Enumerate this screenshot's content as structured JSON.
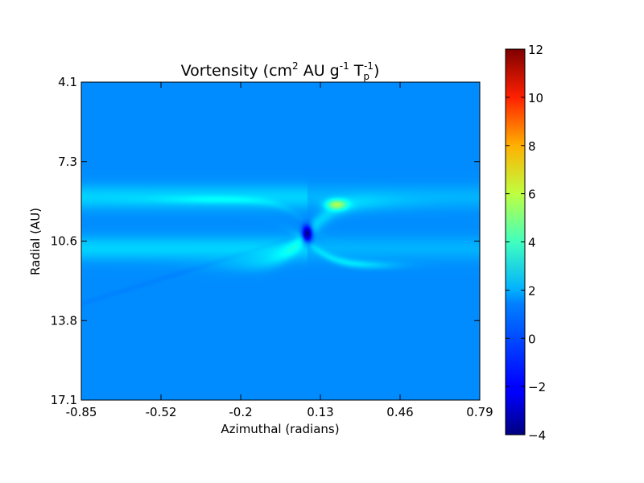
{
  "chart_data": {
    "type": "heatmap",
    "title": {
      "prefix": "Vortensity (cm",
      "sup1": "2",
      "mid1": " AU g",
      "sup2": "-1",
      "mid2": " T",
      "sub": "p",
      "sup3": "-1",
      "suffix": ")"
    },
    "xlabel": "Azimuthal (radians)",
    "ylabel": "Radial (AU)",
    "xlim": [
      -0.85,
      0.79
    ],
    "ylim": [
      4.1,
      17.1
    ],
    "x_ticks": [
      "-0.85",
      "-0.52",
      "-0.2",
      "0.13",
      "0.46",
      "0.79"
    ],
    "y_ticks": [
      "4.1",
      "7.3",
      "10.6",
      "13.8",
      "17.1"
    ],
    "colorbar": {
      "colormap": "jet",
      "min": -4,
      "max": 12,
      "ticks": [
        "12",
        "10",
        "8",
        "6",
        "4",
        "2",
        "0",
        "−2",
        "−4"
      ],
      "tick_values": [
        12,
        10,
        8,
        6,
        4,
        2,
        0,
        -2,
        -4
      ]
    },
    "field": {
      "background_value": 0.2,
      "ring_value": 1.3,
      "inner_ring_radius": 8.8,
      "outer_ring_radius": 10.9,
      "ring_width": 0.35,
      "planet_azimuth": 0.08,
      "planet_radius": 10.3,
      "planet_min_value": -3.8,
      "hot_spot_value": 4.5
    }
  }
}
